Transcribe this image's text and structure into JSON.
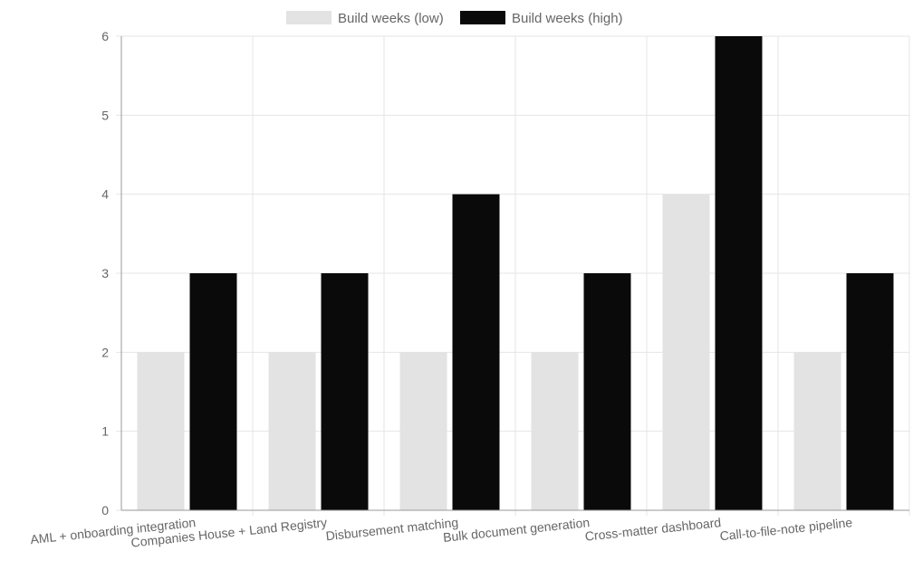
{
  "chart_data": {
    "type": "bar",
    "categories": [
      "AML + onboarding integration",
      "Companies House + Land Registry",
      "Disbursement matching",
      "Bulk document generation",
      "Cross-matter dashboard",
      "Call-to-file-note pipeline"
    ],
    "series": [
      {
        "name": "Build weeks (low)",
        "values": [
          2,
          2,
          2,
          2,
          4,
          2
        ],
        "color": "#e3e3e3"
      },
      {
        "name": "Build weeks (high)",
        "values": [
          3,
          3,
          4,
          3,
          6,
          3
        ],
        "color": "#0a0a0a"
      }
    ],
    "ylim": [
      0,
      6
    ],
    "yticks": [
      "0",
      "1",
      "2",
      "3",
      "4",
      "5",
      "6"
    ],
    "grid": true,
    "legend_position": "top-center",
    "xlabel": "",
    "ylabel": "",
    "title": ""
  }
}
